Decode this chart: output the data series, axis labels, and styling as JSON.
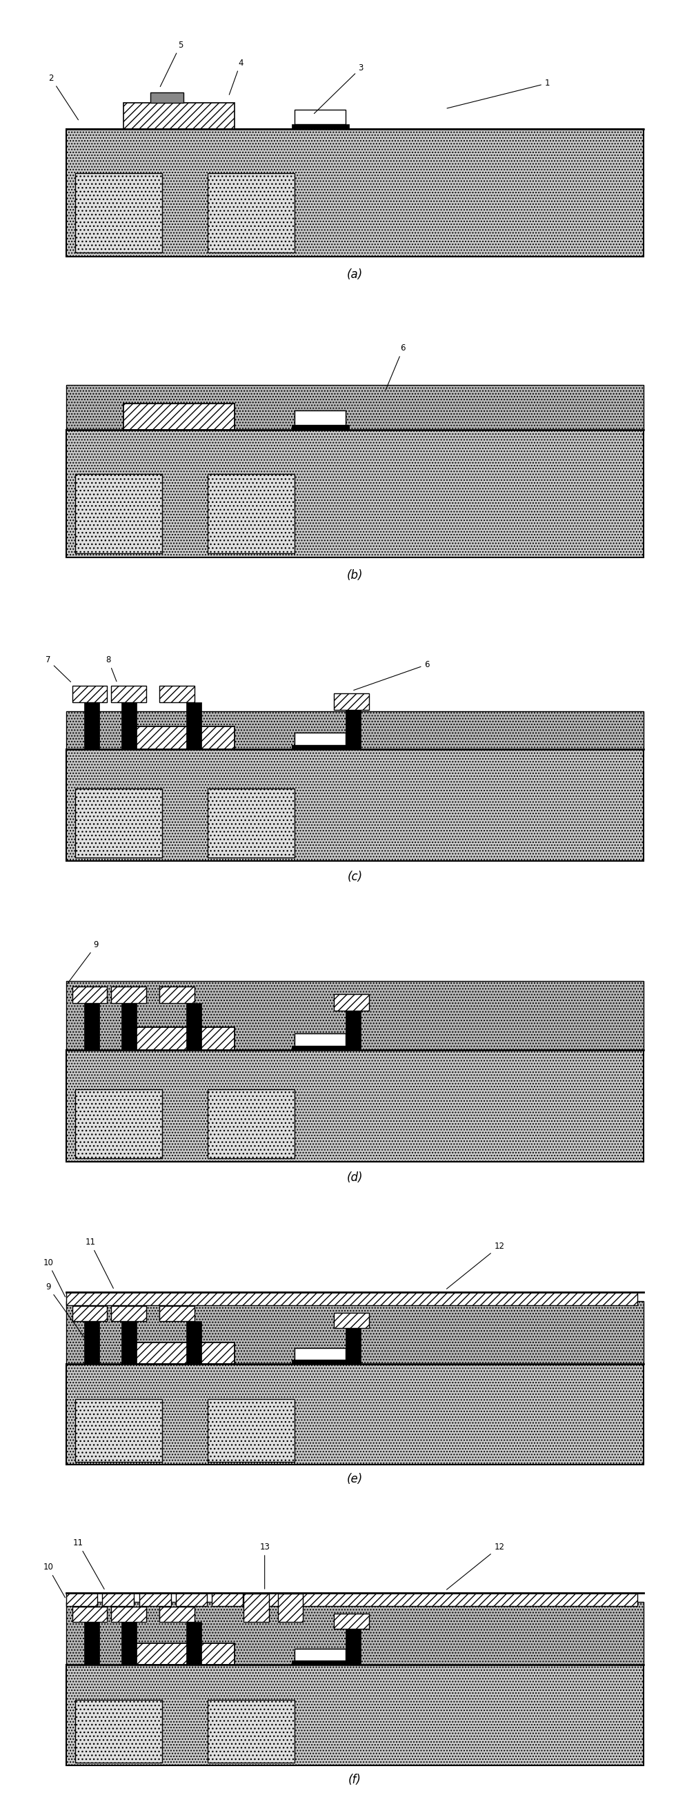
{
  "fig_width": 9.8,
  "fig_height": 26.28,
  "bg_color": "#ffffff",
  "panel_labels": [
    "(a)",
    "(b)",
    "(c)",
    "(d)",
    "(e)",
    "(f)"
  ]
}
